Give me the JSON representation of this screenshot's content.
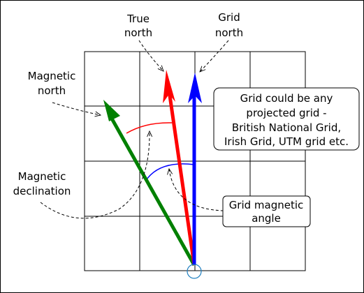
{
  "labels": {
    "true_north": [
      "True",
      "north"
    ],
    "grid_north": [
      "Grid",
      "north"
    ],
    "magnetic_north": [
      "Magnetic",
      "north"
    ],
    "magnetic_declination": [
      "Magnetic",
      "declination"
    ],
    "grid_magnetic_angle": [
      "Grid magnetic",
      "angle"
    ],
    "grid_note": [
      "Grid could be any",
      "projected grid -",
      "British National Grid,",
      "Irish Grid, UTM grid etc."
    ]
  },
  "colors": {
    "true_north": "#ff0000",
    "grid_north": "#0000ff",
    "magnetic_north": "#008000",
    "origin_circle": "#1f7fc0",
    "grid_lines": "#000000"
  },
  "grid": {
    "columns": 4,
    "rows": 4
  }
}
